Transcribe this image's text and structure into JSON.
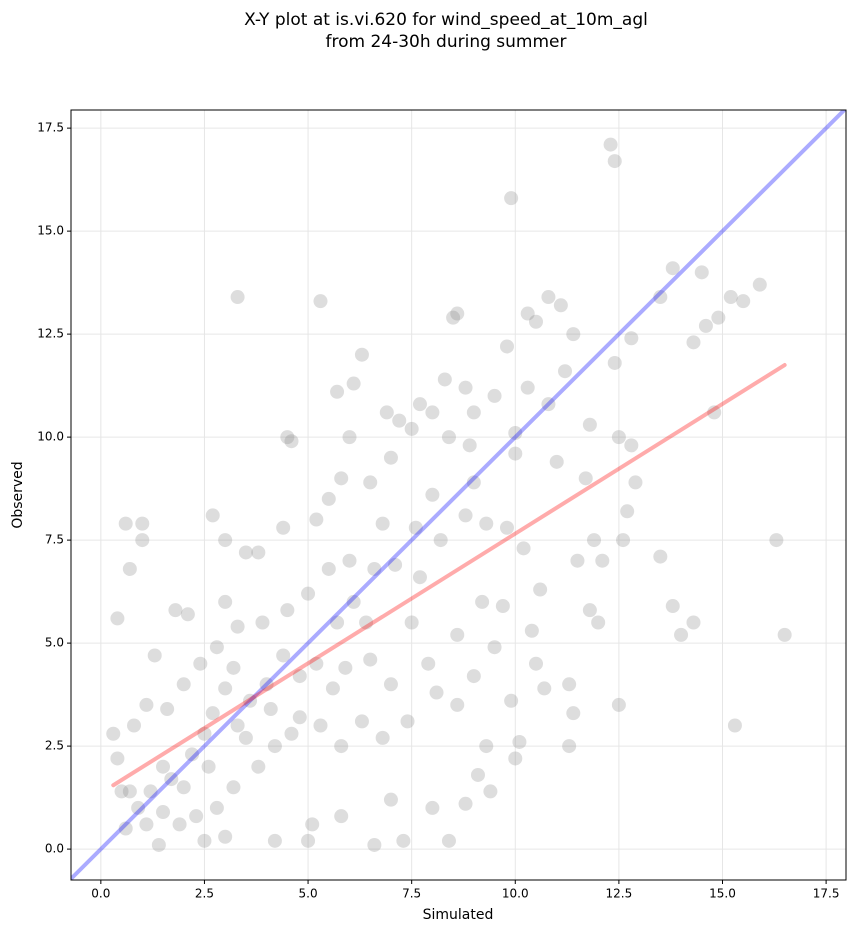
{
  "chart_data": {
    "type": "scatter",
    "title": [
      "X-Y plot at is.vi.620 for wind_speed_at_10m_agl",
      "from 24-30h during summer"
    ],
    "xlabel": "Simulated",
    "ylabel": "Observed",
    "xlim": [
      -0.72,
      17.98
    ],
    "ylim": [
      -0.75,
      17.94
    ],
    "xticks": [
      {
        "value": 0,
        "label": "0.0"
      },
      2.5,
      {
        "value": 5,
        "label": "5.0"
      },
      7.5,
      {
        "value": 10,
        "label": "10.0"
      },
      12.5,
      {
        "value": 15,
        "label": "15.0"
      },
      17.5
    ],
    "yticks": [
      {
        "value": 0,
        "label": "0.0"
      },
      2.5,
      {
        "value": 5,
        "label": "5.0"
      },
      7.5,
      {
        "value": 10,
        "label": "10.0"
      },
      12.5,
      {
        "value": 15,
        "label": "15.0"
      },
      17.5
    ],
    "grid": true,
    "color": "#808080",
    "x": [
      12.3,
      12.4,
      9.9,
      3.3,
      5.3,
      10.8,
      11.1,
      8.5,
      8.6,
      10.3,
      10.5,
      13.5,
      15.2,
      15.5,
      15.9,
      14.5,
      13.8,
      14.3,
      14.6,
      14.9,
      12.8,
      12.4,
      11.4,
      11.2,
      6.3,
      6.1,
      5.7,
      8.3,
      8.8,
      9.5,
      9.8,
      10.3,
      9.0,
      7.7,
      7.2,
      6.9,
      7.5,
      4.5,
      4.6,
      6.0,
      7.0,
      8.0,
      8.4,
      8.9,
      10.0,
      10.8,
      11.8,
      11.0,
      12.5,
      14.8,
      13.5,
      16.3,
      16.5,
      15.3,
      12.5,
      13.8,
      14.0,
      14.3,
      12.1,
      12.6,
      12.7,
      12.9,
      12.8,
      11.7,
      11.9,
      11.5,
      11.8,
      12.0,
      11.3,
      11.4,
      11.3,
      10.5,
      10.7,
      10.1,
      10.0,
      9.9,
      9.3,
      9.1,
      9.4,
      8.8,
      8.0,
      8.4,
      7.3,
      6.6,
      7.0,
      5.8,
      5.1,
      5.0,
      4.2,
      3.0,
      2.5,
      1.4,
      0.6,
      0.3,
      0.4,
      0.6,
      1.0,
      1.0,
      0.7,
      2.7,
      3.0,
      3.5,
      3.8,
      4.4,
      5.2,
      5.5,
      5.8,
      6.5,
      7.6,
      8.0,
      8.2,
      8.8,
      9.3,
      9.8,
      10.2,
      10.6,
      10.4,
      9.7,
      9.2,
      8.6,
      7.9,
      7.5,
      7.1,
      6.6,
      6.1,
      5.7,
      5.2,
      4.8,
      4.4,
      4.0,
      3.6,
      3.3,
      3.0,
      2.7,
      2.5,
      2.2,
      2.0,
      1.7,
      1.5,
      1.2,
      0.9,
      0.7,
      0.5,
      0.4,
      0.8,
      1.1,
      1.3,
      1.8,
      2.1,
      2.4,
      2.8,
      3.3,
      3.9,
      4.5,
      5.0,
      5.5,
      6.0,
      6.8,
      4.8,
      5.3,
      5.8,
      6.3,
      6.8,
      7.4,
      8.1,
      8.6,
      9.0,
      9.5,
      4.2,
      3.8,
      3.2,
      2.8,
      2.3,
      1.9,
      1.5,
      1.1,
      6.5,
      7.0,
      5.6,
      4.6,
      3.5,
      2.6,
      1.6,
      2.0,
      3.0,
      3.2,
      4.1,
      5.9,
      6.4,
      7.7,
      9.0,
      10.0
    ],
    "values": [
      17.1,
      16.7,
      15.8,
      13.4,
      13.3,
      13.4,
      13.2,
      12.9,
      13.0,
      13.0,
      12.8,
      13.4,
      13.4,
      13.3,
      13.7,
      14.0,
      14.1,
      12.3,
      12.7,
      12.9,
      12.4,
      11.8,
      12.5,
      11.6,
      12.0,
      11.3,
      11.1,
      11.4,
      11.2,
      11.0,
      12.2,
      11.2,
      10.6,
      10.8,
      10.4,
      10.6,
      10.2,
      10.0,
      9.9,
      10.0,
      9.5,
      10.6,
      10.0,
      9.8,
      9.6,
      10.8,
      10.3,
      9.4,
      10.0,
      10.6,
      7.1,
      7.5,
      5.2,
      3.0,
      3.5,
      5.9,
      5.2,
      5.5,
      7.0,
      7.5,
      8.2,
      8.9,
      9.8,
      9.0,
      7.5,
      7.0,
      5.8,
      5.5,
      4.0,
      3.3,
      2.5,
      4.5,
      3.9,
      2.6,
      2.2,
      3.6,
      2.5,
      1.8,
      1.4,
      1.1,
      1.0,
      0.2,
      0.2,
      0.1,
      1.2,
      0.8,
      0.6,
      0.2,
      0.2,
      0.3,
      0.2,
      0.1,
      0.5,
      2.8,
      5.6,
      7.9,
      7.9,
      7.5,
      6.8,
      8.1,
      7.5,
      7.2,
      7.2,
      7.8,
      8.0,
      8.5,
      9.0,
      8.9,
      7.8,
      8.6,
      7.5,
      8.1,
      7.9,
      7.8,
      7.3,
      6.3,
      5.3,
      5.9,
      6.0,
      5.2,
      4.5,
      5.5,
      6.9,
      6.8,
      6.0,
      5.5,
      4.5,
      4.2,
      4.7,
      4.0,
      3.6,
      3.0,
      3.9,
      3.3,
      2.8,
      2.3,
      1.5,
      1.7,
      2.0,
      1.4,
      1.0,
      1.4,
      1.4,
      2.2,
      3.0,
      3.5,
      4.7,
      5.8,
      5.7,
      4.5,
      4.9,
      5.4,
      5.5,
      5.8,
      6.2,
      6.8,
      7.0,
      7.9,
      3.2,
      3.0,
      2.5,
      3.1,
      2.7,
      3.1,
      3.8,
      3.5,
      4.2,
      4.9,
      2.5,
      2.0,
      1.5,
      1.0,
      0.8,
      0.6,
      0.9,
      0.6,
      4.6,
      4.0,
      3.9,
      2.8,
      2.7,
      2.0,
      3.4,
      4.0,
      6.0,
      4.4,
      3.4,
      4.4,
      5.5,
      6.6,
      8.9,
      10.1
    ],
    "lines": [
      {
        "color": "#0000ff",
        "x": [
          -0.72,
          17.98
        ],
        "values": [
          -0.72,
          17.98
        ]
      },
      {
        "color": "#ff0000",
        "x": [
          0.3,
          16.5
        ],
        "values": [
          1.55,
          11.75
        ]
      }
    ]
  }
}
